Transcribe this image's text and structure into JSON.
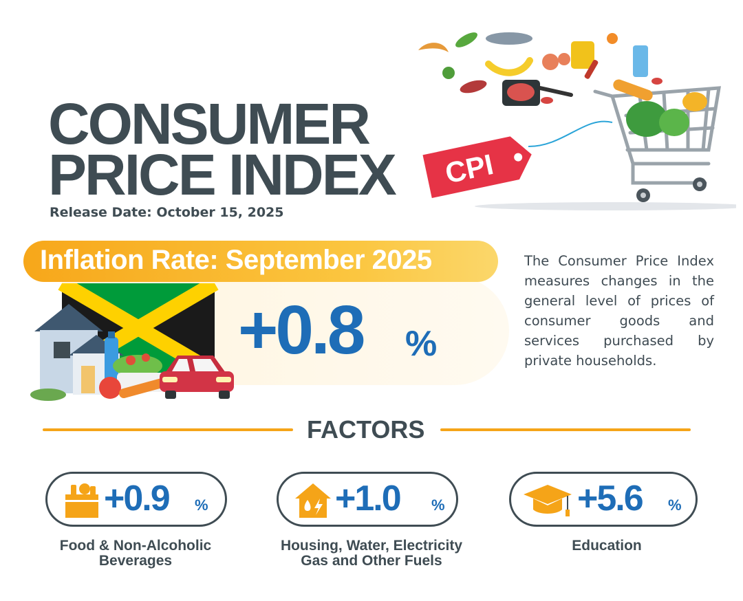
{
  "header": {
    "title_line1": "CONSUMER",
    "title_line2": "PRICE INDEX",
    "release_date": "Release Date: October 15, 2025",
    "tag_label": "CPI"
  },
  "inflation": {
    "label": "Inflation Rate: September 2025",
    "value": "+0.8",
    "unit": "%"
  },
  "description": "The Consumer Price Index measures changes in the general level of prices of consumer goods and services purchased by private households.",
  "factors": {
    "heading": "FACTORS",
    "items": [
      {
        "icon": "grocery-bag-icon",
        "value": "+0.9",
        "unit": "%",
        "label_line1": "Food & Non-Alcoholic",
        "label_line2": "Beverages"
      },
      {
        "icon": "house-utilities-icon",
        "value": "+1.0",
        "unit": "%",
        "label_line1": "Housing, Water, Electricity",
        "label_line2": "Gas and Other Fuels"
      },
      {
        "icon": "graduation-cap-icon",
        "value": "+5.6",
        "unit": "%",
        "label_line1": "Education",
        "label_line2": ""
      }
    ]
  },
  "colors": {
    "accent_blue": "#1e6db7",
    "accent_orange": "#f5a418",
    "text_dark": "#3f4c53",
    "tag_red": "#e63346"
  }
}
